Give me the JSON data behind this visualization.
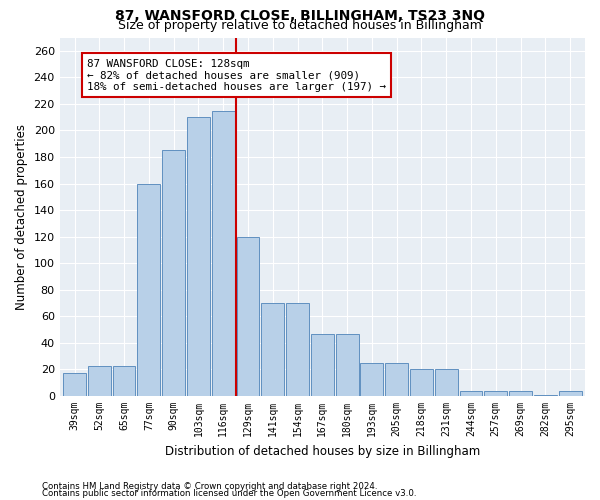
{
  "title": "87, WANSFORD CLOSE, BILLINGHAM, TS23 3NQ",
  "subtitle": "Size of property relative to detached houses in Billingham",
  "xlabel": "Distribution of detached houses by size in Billingham",
  "ylabel": "Number of detached properties",
  "categories": [
    "39sqm",
    "52sqm",
    "65sqm",
    "77sqm",
    "90sqm",
    "103sqm",
    "116sqm",
    "129sqm",
    "141sqm",
    "154sqm",
    "167sqm",
    "180sqm",
    "193sqm",
    "205sqm",
    "218sqm",
    "231sqm",
    "244sqm",
    "257sqm",
    "269sqm",
    "282sqm",
    "295sqm"
  ],
  "bar_heights": [
    17,
    23,
    23,
    160,
    185,
    210,
    215,
    120,
    70,
    70,
    47,
    47,
    25,
    25,
    20,
    20,
    4,
    4,
    4,
    1,
    4
  ],
  "bar_color": "#b8d0e8",
  "bar_edge_color": "#6090c0",
  "vline_x": 6.5,
  "vline_color": "#cc0000",
  "annotation_text": "87 WANSFORD CLOSE: 128sqm\n← 82% of detached houses are smaller (909)\n18% of semi-detached houses are larger (197) →",
  "annotation_box_color": "#ffffff",
  "annotation_box_edge": "#cc0000",
  "ylim": [
    0,
    270
  ],
  "yticks": [
    0,
    20,
    40,
    60,
    80,
    100,
    120,
    140,
    160,
    180,
    200,
    220,
    240,
    260
  ],
  "plot_bg_color": "#e8eef4",
  "footer_line1": "Contains HM Land Registry data © Crown copyright and database right 2024.",
  "footer_line2": "Contains public sector information licensed under the Open Government Licence v3.0.",
  "title_fontsize": 10,
  "subtitle_fontsize": 9,
  "xlabel_fontsize": 8.5,
  "ylabel_fontsize": 8.5,
  "annot_fontsize": 7.8
}
